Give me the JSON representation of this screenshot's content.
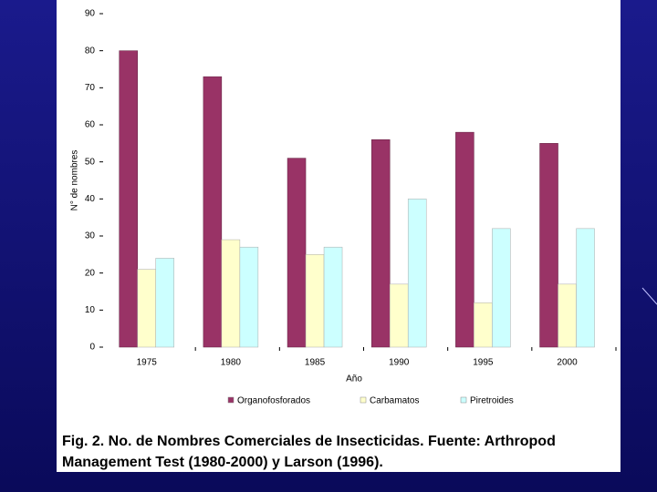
{
  "chart_data": {
    "type": "bar",
    "y_label": "N° de nombres",
    "x_label": "Año",
    "categories": [
      "1975",
      "1980",
      "1985",
      "1990",
      "1995",
      "2000"
    ],
    "series": [
      {
        "name": "Organofosforados",
        "color": "#993366",
        "values": [
          80,
          73,
          51,
          56,
          58,
          55
        ]
      },
      {
        "name": "Carbamatos",
        "color": "#ffffcc",
        "values": [
          21,
          29,
          25,
          17,
          12,
          17
        ]
      },
      {
        "name": "Piretroides",
        "color": "#ccffff",
        "values": [
          24,
          27,
          27,
          40,
          32,
          32
        ]
      }
    ],
    "ylim": [
      0,
      90
    ],
    "yticks": [
      0,
      10,
      20,
      30,
      40,
      50,
      60,
      70,
      80,
      90
    ],
    "grid": false,
    "legend": "bottom"
  },
  "caption": [
    "Fig. 2. No. de Nombres Comerciales de Insecticidas. Fuente:  Arthropod",
    "Management Test (1980-2000) y Larson (1996)."
  ]
}
